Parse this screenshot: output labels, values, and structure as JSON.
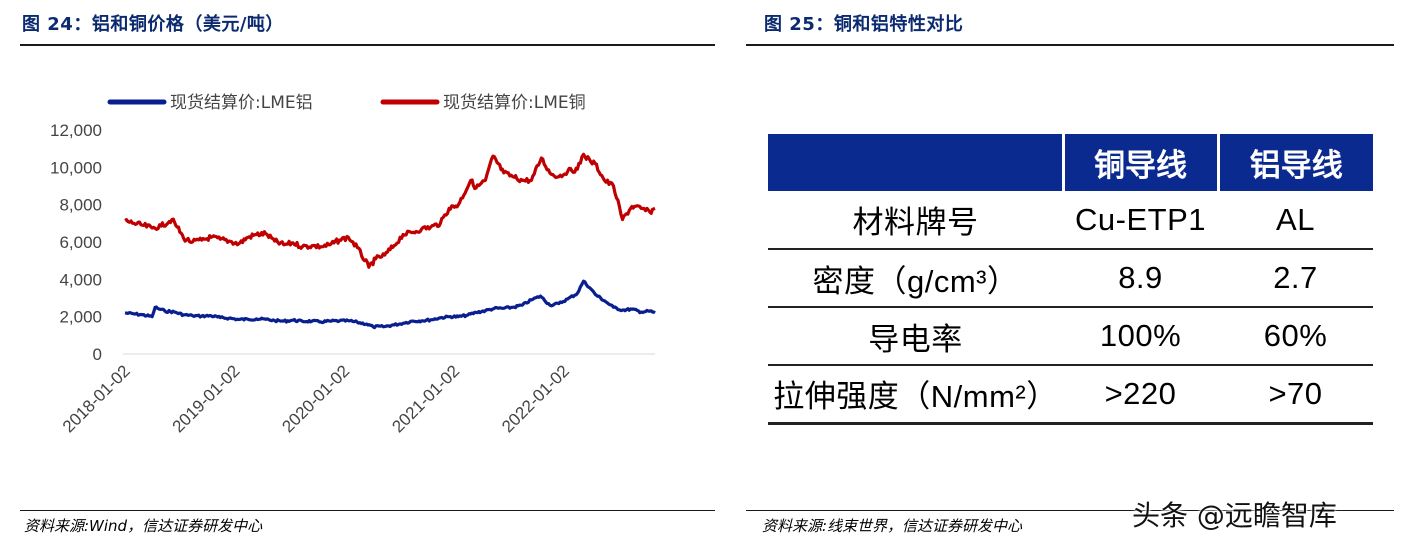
{
  "left_panel": {
    "title": "图 24：铝和铜价格（美元/吨）",
    "source": "资料来源:Wind，信达证券研发中心"
  },
  "right_panel": {
    "title": "图 25：铜和铝特性对比",
    "source": "资料来源:线束世界，信达证券研发中心",
    "table": {
      "headers": [
        "",
        "铜导线",
        "铝导线"
      ],
      "rows": [
        [
          "材料牌号",
          "Cu-ETP1",
          "AL"
        ],
        [
          "密度（g/cm³）",
          "8.9",
          "2.7"
        ],
        [
          "导电率",
          "100%",
          "60%"
        ],
        [
          "拉伸强度（N/mm²）",
          ">220",
          ">70"
        ]
      ]
    }
  },
  "watermark": "头条 @远瞻智库",
  "colors": {
    "title": "#0b2a6f",
    "header_bg": "#0b2a8f",
    "aluminum": "#0a1f8f",
    "copper": "#c00000"
  },
  "chart_data": {
    "type": "line",
    "x_tick_labels": [
      "2018-01-02",
      "2019-01-02",
      "2020-01-02",
      "2021-01-02",
      "2022-01-02"
    ],
    "x_range": [
      "2018-01-02",
      "2022-10-31"
    ],
    "ylim": [
      0,
      12000
    ],
    "y_ticks": [
      0,
      2000,
      4000,
      6000,
      8000,
      10000,
      12000
    ],
    "y_tick_labels": [
      "0",
      "2,000",
      "4,000",
      "6,000",
      "8,000",
      "10,000",
      "12,000"
    ],
    "grid": false,
    "legend_position": "top",
    "series": [
      {
        "name": "现货结算价:LME铝",
        "color": "#0a1f8f",
        "points": [
          [
            "2018-01-02",
            2200
          ],
          [
            "2018-02-01",
            2150
          ],
          [
            "2018-03-01",
            2100
          ],
          [
            "2018-04-02",
            2000
          ],
          [
            "2018-04-12",
            2500
          ],
          [
            "2018-04-20",
            2450
          ],
          [
            "2018-05-15",
            2300
          ],
          [
            "2018-06-15",
            2250
          ],
          [
            "2018-07-16",
            2100
          ],
          [
            "2018-08-15",
            2050
          ],
          [
            "2018-09-14",
            2030
          ],
          [
            "2018-10-15",
            2050
          ],
          [
            "2018-11-15",
            1950
          ],
          [
            "2018-12-14",
            1920
          ],
          [
            "2019-01-15",
            1850
          ],
          [
            "2019-02-15",
            1860
          ],
          [
            "2019-03-15",
            1880
          ],
          [
            "2019-04-15",
            1860
          ],
          [
            "2019-05-15",
            1790
          ],
          [
            "2019-06-14",
            1760
          ],
          [
            "2019-07-15",
            1810
          ],
          [
            "2019-08-15",
            1750
          ],
          [
            "2019-09-16",
            1760
          ],
          [
            "2019-10-15",
            1720
          ],
          [
            "2019-11-15",
            1760
          ],
          [
            "2019-12-16",
            1770
          ],
          [
            "2020-01-15",
            1780
          ],
          [
            "2020-02-14",
            1700
          ],
          [
            "2020-03-16",
            1600
          ],
          [
            "2020-04-06",
            1460
          ],
          [
            "2020-05-15",
            1470
          ],
          [
            "2020-06-15",
            1560
          ],
          [
            "2020-07-15",
            1650
          ],
          [
            "2020-08-14",
            1760
          ],
          [
            "2020-09-15",
            1780
          ],
          [
            "2020-10-15",
            1830
          ],
          [
            "2020-11-16",
            1940
          ],
          [
            "2020-12-15",
            2000
          ],
          [
            "2021-01-15",
            2000
          ],
          [
            "2021-02-15",
            2080
          ],
          [
            "2021-03-15",
            2230
          ],
          [
            "2021-04-15",
            2320
          ],
          [
            "2021-05-14",
            2440
          ],
          [
            "2021-06-15",
            2450
          ],
          [
            "2021-07-15",
            2500
          ],
          [
            "2021-08-16",
            2620
          ],
          [
            "2021-09-15",
            2900
          ],
          [
            "2021-10-15",
            3100
          ],
          [
            "2021-11-15",
            2620
          ],
          [
            "2021-12-15",
            2700
          ],
          [
            "2022-01-14",
            2950
          ],
          [
            "2022-02-15",
            3250
          ],
          [
            "2022-03-07",
            3900
          ],
          [
            "2022-03-31",
            3500
          ],
          [
            "2022-04-15",
            3200
          ],
          [
            "2022-05-16",
            2850
          ],
          [
            "2022-06-15",
            2500
          ],
          [
            "2022-07-15",
            2350
          ],
          [
            "2022-08-15",
            2400
          ],
          [
            "2022-09-15",
            2250
          ],
          [
            "2022-10-14",
            2300
          ],
          [
            "2022-10-31",
            2200
          ]
        ]
      },
      {
        "name": "现货结算价:LME铜",
        "color": "#c00000",
        "points": [
          [
            "2018-01-02",
            7150
          ],
          [
            "2018-02-01",
            7000
          ],
          [
            "2018-03-01",
            6900
          ],
          [
            "2018-04-02",
            6750
          ],
          [
            "2018-05-02",
            6850
          ],
          [
            "2018-06-07",
            7200
          ],
          [
            "2018-06-25",
            6800
          ],
          [
            "2018-07-16",
            6200
          ],
          [
            "2018-08-15",
            6000
          ],
          [
            "2018-09-14",
            6100
          ],
          [
            "2018-10-15",
            6250
          ],
          [
            "2018-11-15",
            6150
          ],
          [
            "2018-12-14",
            6050
          ],
          [
            "2019-01-15",
            5900
          ],
          [
            "2019-02-15",
            6250
          ],
          [
            "2019-03-15",
            6400
          ],
          [
            "2019-04-15",
            6450
          ],
          [
            "2019-05-15",
            6050
          ],
          [
            "2019-06-14",
            5850
          ],
          [
            "2019-07-15",
            5950
          ],
          [
            "2019-08-15",
            5750
          ],
          [
            "2019-09-16",
            5800
          ],
          [
            "2019-10-15",
            5750
          ],
          [
            "2019-11-15",
            5850
          ],
          [
            "2019-12-16",
            6100
          ],
          [
            "2020-01-15",
            6250
          ],
          [
            "2020-02-14",
            5700
          ],
          [
            "2020-03-23",
            4650
          ],
          [
            "2020-04-15",
            5100
          ],
          [
            "2020-05-15",
            5300
          ],
          [
            "2020-06-15",
            5800
          ],
          [
            "2020-07-15",
            6400
          ],
          [
            "2020-08-14",
            6500
          ],
          [
            "2020-09-15",
            6700
          ],
          [
            "2020-10-15",
            6800
          ],
          [
            "2020-11-16",
            7000
          ],
          [
            "2020-12-15",
            7800
          ],
          [
            "2021-01-15",
            8000
          ],
          [
            "2021-02-25",
            9300
          ],
          [
            "2021-03-15",
            8900
          ],
          [
            "2021-04-15",
            9300
          ],
          [
            "2021-05-10",
            10600
          ],
          [
            "2021-06-15",
            9700
          ],
          [
            "2021-07-15",
            9500
          ],
          [
            "2021-08-16",
            9300
          ],
          [
            "2021-09-15",
            9300
          ],
          [
            "2021-10-18",
            10500
          ],
          [
            "2021-11-15",
            9700
          ],
          [
            "2021-12-15",
            9500
          ],
          [
            "2022-01-14",
            9800
          ],
          [
            "2022-02-15",
            9900
          ],
          [
            "2022-03-07",
            10700
          ],
          [
            "2022-03-31",
            10300
          ],
          [
            "2022-04-15",
            10200
          ],
          [
            "2022-05-16",
            9300
          ],
          [
            "2022-06-15",
            9000
          ],
          [
            "2022-07-15",
            7200
          ],
          [
            "2022-08-15",
            7900
          ],
          [
            "2022-09-15",
            7800
          ],
          [
            "2022-10-14",
            7600
          ],
          [
            "2022-10-31",
            7800
          ]
        ]
      }
    ]
  }
}
